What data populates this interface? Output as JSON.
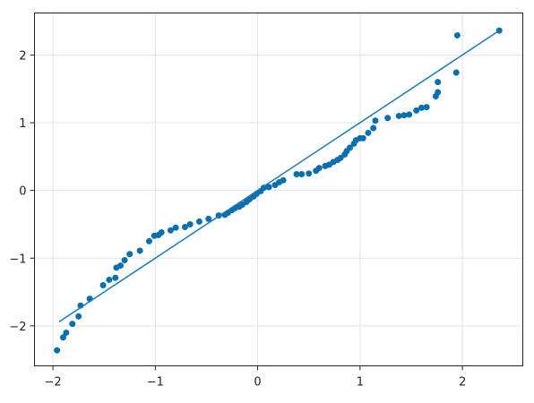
{
  "chart_data": {
    "type": "scatter",
    "xlim": [
      -2.18,
      2.59
    ],
    "ylim": [
      -2.59,
      2.62
    ],
    "xticks": [
      {
        "value": -2,
        "label": "−2"
      },
      {
        "value": -1,
        "label": "−1"
      },
      0,
      1,
      2
    ],
    "yticks": [
      {
        "value": -2,
        "label": "−2"
      },
      {
        "value": -1,
        "label": "−1"
      },
      0,
      1,
      2
    ],
    "grid": true,
    "series": [
      {
        "type": "scatter",
        "color": "#0a6fae",
        "x": [
          -1.96,
          -1.9,
          -1.87,
          -1.81,
          -1.75,
          -1.73,
          -1.64,
          -1.51,
          -1.45,
          -1.39,
          -1.38,
          -1.34,
          -1.3,
          -1.25,
          -1.15,
          -1.06,
          -1.01,
          -0.97,
          -0.94,
          -0.85,
          -0.8,
          -0.71,
          -0.66,
          -0.57,
          -0.48,
          -0.38,
          -0.32,
          -0.29,
          -0.25,
          -0.22,
          -0.18,
          -0.15,
          -0.11,
          -0.08,
          -0.04,
          -0.01,
          0.03,
          0.06,
          0.11,
          0.17,
          0.21,
          0.25,
          0.38,
          0.43,
          0.5,
          0.57,
          0.6,
          0.66,
          0.7,
          0.74,
          0.78,
          0.81,
          0.85,
          0.87,
          0.9,
          0.94,
          0.96,
          1.0,
          1.03,
          1.08,
          1.13,
          1.15,
          1.27,
          1.38,
          1.43,
          1.48,
          1.55,
          1.6,
          1.65,
          1.74,
          1.76,
          1.76,
          1.94,
          1.95,
          2.36
        ],
        "y": [
          -2.36,
          -2.17,
          -2.1,
          -1.97,
          -1.86,
          -1.7,
          -1.6,
          -1.4,
          -1.32,
          -1.29,
          -1.14,
          -1.11,
          -1.03,
          -0.94,
          -0.89,
          -0.75,
          -0.67,
          -0.66,
          -0.62,
          -0.59,
          -0.55,
          -0.54,
          -0.5,
          -0.46,
          -0.42,
          -0.37,
          -0.36,
          -0.33,
          -0.29,
          -0.26,
          -0.24,
          -0.21,
          -0.17,
          -0.13,
          -0.09,
          -0.05,
          -0.01,
          0.04,
          0.05,
          0.08,
          0.12,
          0.15,
          0.24,
          0.24,
          0.25,
          0.29,
          0.33,
          0.36,
          0.38,
          0.42,
          0.45,
          0.48,
          0.53,
          0.58,
          0.63,
          0.69,
          0.74,
          0.77,
          0.77,
          0.85,
          0.92,
          1.03,
          1.07,
          1.1,
          1.11,
          1.12,
          1.18,
          1.22,
          1.23,
          1.39,
          1.45,
          1.6,
          1.74,
          2.29,
          2.36
        ]
      },
      {
        "type": "line",
        "color": "#1a7bb8",
        "x": [
          -1.94,
          2.36
        ],
        "y": [
          -1.94,
          2.36
        ]
      }
    ]
  }
}
